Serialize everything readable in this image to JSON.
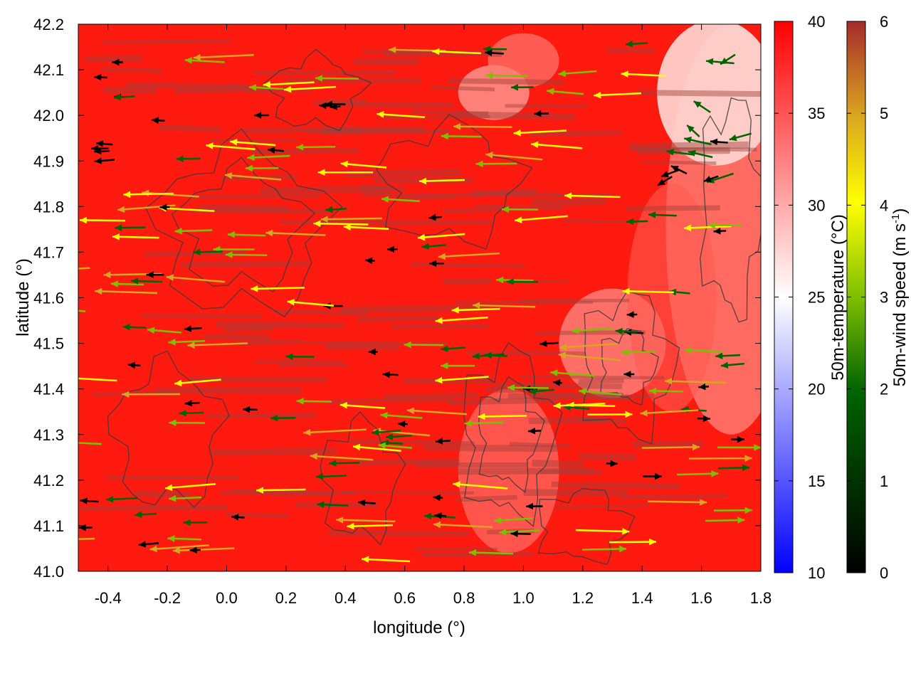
{
  "chart_data": {
    "type": "heatmap",
    "title": "",
    "xlabel": "longitude (°)",
    "ylabel": "latitude (°)",
    "xlim": [
      -0.5,
      1.8
    ],
    "ylim": [
      41.0,
      42.2
    ],
    "x_ticks": [
      "-0.4",
      "-0.2",
      "0.0",
      "0.2",
      "0.4",
      "0.6",
      "0.8",
      "1.0",
      "1.2",
      "1.4",
      "1.6",
      "1.8"
    ],
    "y_ticks": [
      "41.0",
      "41.1",
      "41.2",
      "41.3",
      "41.4",
      "41.5",
      "41.6",
      "41.7",
      "41.8",
      "41.9",
      "42.0",
      "42.1",
      "42.2"
    ],
    "layers": [
      "50m-temperature field",
      "terrain elevation contours",
      "50m-wind vectors colored by speed"
    ],
    "temperature_colorbar": {
      "label": "50m-temperature (°C)",
      "range": [
        10,
        40
      ],
      "ticks": [
        "10",
        "15",
        "20",
        "25",
        "30",
        "35",
        "40"
      ],
      "colors": [
        "#0000ff",
        "#ffffff",
        "#ff0000"
      ]
    },
    "wind_colorbar": {
      "label": "50m-wind speed (m s",
      "label_sup": "-1",
      "label_end": ")",
      "range": [
        0,
        6
      ],
      "ticks": [
        "0",
        "1",
        "2",
        "3",
        "4",
        "5",
        "6"
      ],
      "colors": [
        "#000000",
        "#006400",
        "#7fbf00",
        "#ffff00",
        "#daa520",
        "#a52a2a"
      ]
    },
    "dominant_wind": "westward (easterly) flow over most of the domain, eastward arrows in the south-east",
    "temperature_pattern": "above 35 °C over most of the area; cooler 28–35 °C over the high terrain near longitude 1.0–1.8 and in the north near 0.8–1.0"
  }
}
